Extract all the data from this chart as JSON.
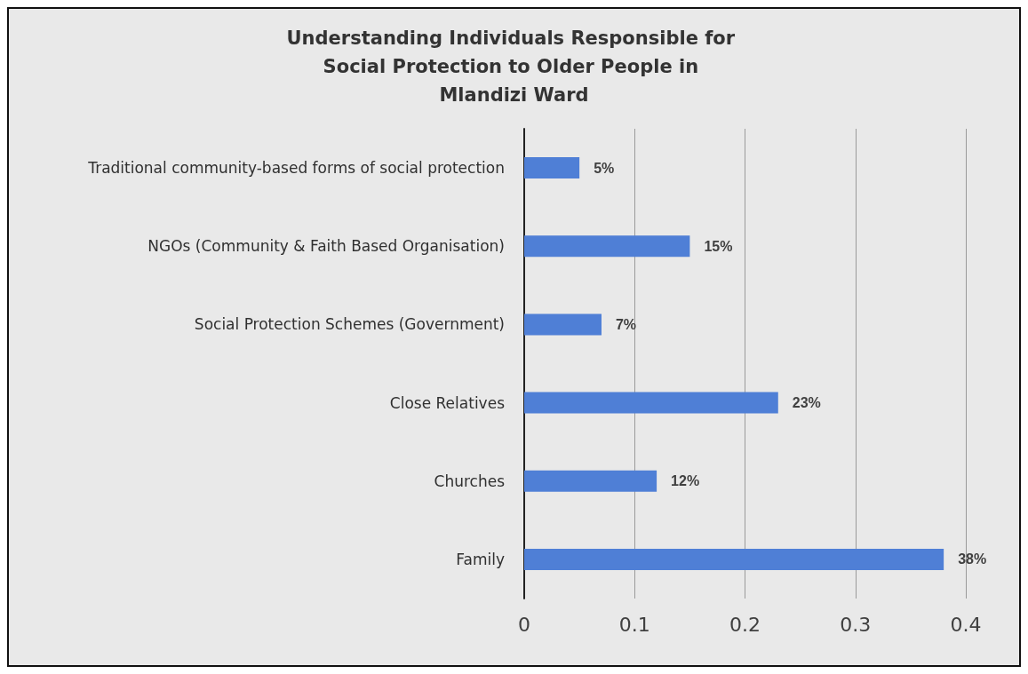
{
  "chart_data": {
    "type": "bar",
    "orientation": "horizontal",
    "title": "Understanding Individuals Responsible for Social Protection to Older People in Mlandizi Ward",
    "categories": [
      "Traditional community-based forms of social protection",
      "NGOs (Community & Faith Based Organisation)",
      "Social Protection Schemes (Government)",
      "Close Relatives",
      "Churches",
      "Family"
    ],
    "values": [
      0.05,
      0.15,
      0.07,
      0.23,
      0.12,
      0.38
    ],
    "value_labels": [
      "5%",
      "15%",
      "7%",
      "23%",
      "12%",
      "38%"
    ],
    "color": "#4f7fd6",
    "xlim": [
      0,
      0.4
    ],
    "xticks": [
      0,
      0.1,
      0.2,
      0.3,
      0.4
    ],
    "grid": "x"
  }
}
